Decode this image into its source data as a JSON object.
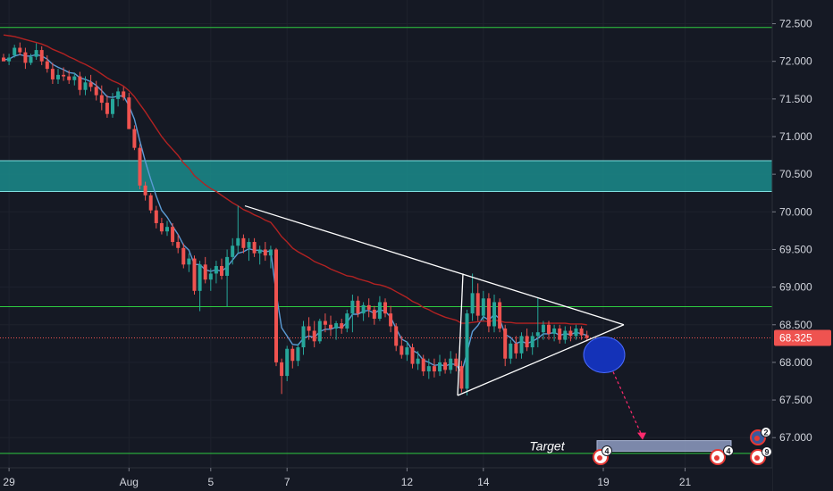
{
  "chart_data": {
    "type": "candlestick",
    "y_ticks": [
      "72.500",
      "72.000",
      "71.500",
      "71.000",
      "70.500",
      "70.000",
      "69.500",
      "69.000",
      "68.500",
      "68.000",
      "67.500",
      "67.000"
    ],
    "x_ticks": [
      "29",
      "Aug",
      "5",
      "7",
      "12",
      "14",
      "19",
      "21"
    ],
    "ylim": [
      66.68,
      72.72
    ],
    "last_price": {
      "label": "68.325",
      "value": 68.325,
      "color": "#ef5350"
    },
    "horizontal_levels": [
      {
        "value": 72.45,
        "color": "#2ecc40"
      },
      {
        "value": 68.74,
        "color": "#2ecc40"
      },
      {
        "value": 66.79,
        "color": "#2ecc40"
      }
    ],
    "resistance_zone": {
      "from": 70.27,
      "to": 70.68,
      "color": "#1a8c8c"
    },
    "triangle": {
      "apex_value": 68.5,
      "upper_start_value": 70.08,
      "lower_start_value": 67.56,
      "color": "#ffffff"
    },
    "target_box": {
      "label": "Target",
      "from": 66.82,
      "to": 66.96,
      "color": "#8e9cc2"
    },
    "projection_circle": {
      "center_value": 68.1,
      "color": "#1432b8"
    },
    "event_markers": [
      {
        "label": "4"
      },
      {
        "label": "4"
      },
      {
        "label": "9"
      },
      {
        "label": "2"
      }
    ],
    "colors": {
      "up": "#26a69a",
      "down": "#ef5350",
      "fast_ma": "#5b9bd5",
      "slow_ma": "#b22222",
      "arrow": "#ff2a6d"
    },
    "series": [
      {
        "name": "",
        "kind": "candles",
        "values": [
          [
            72.05,
            72.1,
            72.02,
            72.0
          ],
          [
            72.0,
            72.1,
            71.95,
            72.05
          ],
          [
            72.08,
            72.22,
            72.05,
            72.18
          ],
          [
            72.18,
            72.25,
            72.08,
            72.12
          ],
          [
            72.12,
            72.18,
            71.9,
            71.98
          ],
          [
            71.98,
            72.1,
            71.95,
            72.06
          ],
          [
            72.06,
            72.24,
            72.02,
            72.15
          ],
          [
            72.15,
            72.2,
            71.95,
            72.0
          ],
          [
            72.0,
            72.08,
            71.85,
            71.9
          ],
          [
            71.9,
            71.98,
            71.7,
            71.76
          ],
          [
            71.76,
            71.9,
            71.7,
            71.82
          ],
          [
            71.82,
            71.92,
            71.74,
            71.8
          ],
          [
            71.8,
            71.88,
            71.7,
            71.75
          ],
          [
            71.75,
            71.85,
            71.68,
            71.8
          ],
          [
            71.8,
            71.86,
            71.55,
            71.62
          ],
          [
            71.62,
            71.8,
            71.55,
            71.72
          ],
          [
            71.72,
            71.82,
            71.6,
            71.66
          ],
          [
            71.66,
            71.74,
            71.48,
            71.55
          ],
          [
            71.55,
            71.68,
            71.35,
            71.45
          ],
          [
            71.45,
            71.55,
            71.25,
            71.3
          ],
          [
            71.3,
            71.58,
            71.25,
            71.5
          ],
          [
            71.5,
            71.65,
            71.4,
            71.6
          ],
          [
            71.6,
            71.66,
            71.48,
            71.52
          ],
          [
            71.52,
            71.58,
            71.1,
            71.1
          ],
          [
            71.1,
            71.15,
            70.82,
            70.85
          ],
          [
            70.85,
            70.9,
            70.3,
            70.35
          ],
          [
            70.35,
            70.4,
            70.15,
            70.22
          ],
          [
            70.22,
            70.25,
            69.98,
            70.02
          ],
          [
            70.02,
            70.08,
            69.78,
            69.85
          ],
          [
            69.85,
            69.92,
            69.7,
            69.74
          ],
          [
            69.74,
            69.88,
            69.68,
            69.8
          ],
          [
            69.8,
            69.85,
            69.55,
            69.6
          ],
          [
            69.6,
            69.7,
            69.45,
            69.52
          ],
          [
            69.52,
            69.58,
            69.25,
            69.3
          ],
          [
            69.3,
            69.45,
            69.2,
            69.38
          ],
          [
            69.38,
            69.42,
            68.9,
            68.95
          ],
          [
            68.95,
            69.35,
            68.68,
            69.3
          ],
          [
            69.3,
            69.4,
            69.05,
            69.1
          ],
          [
            69.1,
            69.25,
            68.95,
            69.18
          ],
          [
            69.18,
            69.35,
            69.05,
            69.28
          ],
          [
            69.28,
            69.38,
            69.1,
            69.15
          ],
          [
            69.15,
            69.5,
            68.74,
            69.4
          ],
          [
            69.4,
            69.65,
            69.3,
            69.55
          ],
          [
            69.55,
            70.08,
            69.45,
            69.65
          ],
          [
            69.65,
            69.7,
            69.45,
            69.52
          ],
          [
            69.52,
            69.65,
            69.35,
            69.6
          ],
          [
            69.6,
            69.65,
            69.4,
            69.45
          ],
          [
            69.45,
            69.55,
            69.3,
            69.5
          ],
          [
            69.5,
            69.6,
            69.35,
            69.42
          ],
          [
            69.42,
            69.55,
            69.25,
            69.5
          ],
          [
            69.5,
            69.52,
            67.95,
            68.0
          ],
          [
            68.0,
            68.05,
            67.58,
            67.82
          ],
          [
            67.82,
            68.22,
            67.75,
            68.18
          ],
          [
            68.18,
            68.22,
            67.92,
            68.02
          ],
          [
            68.02,
            68.25,
            67.95,
            68.2
          ],
          [
            68.2,
            68.55,
            68.1,
            68.48
          ],
          [
            68.48,
            68.6,
            68.3,
            68.42
          ],
          [
            68.42,
            68.55,
            68.2,
            68.28
          ],
          [
            68.28,
            68.58,
            68.25,
            68.55
          ],
          [
            68.55,
            68.65,
            68.4,
            68.5
          ],
          [
            68.5,
            68.62,
            68.35,
            68.45
          ],
          [
            68.45,
            68.55,
            68.3,
            68.52
          ],
          [
            68.52,
            68.58,
            68.38,
            68.45
          ],
          [
            68.45,
            68.7,
            68.4,
            68.65
          ],
          [
            68.65,
            68.9,
            68.4,
            68.82
          ],
          [
            68.82,
            68.88,
            68.6,
            68.65
          ],
          [
            68.65,
            68.8,
            68.55,
            68.76
          ],
          [
            68.76,
            68.85,
            68.6,
            68.7
          ],
          [
            68.7,
            68.75,
            68.5,
            68.58
          ],
          [
            68.58,
            68.88,
            68.55,
            68.8
          ],
          [
            68.8,
            68.85,
            68.6,
            68.65
          ],
          [
            68.65,
            68.75,
            68.4,
            68.48
          ],
          [
            68.48,
            68.52,
            68.15,
            68.22
          ],
          [
            68.22,
            68.35,
            68.05,
            68.1
          ],
          [
            68.1,
            68.28,
            68.02,
            68.2
          ],
          [
            68.2,
            68.25,
            67.92,
            67.98
          ],
          [
            67.98,
            68.15,
            67.9,
            68.05
          ],
          [
            68.05,
            68.1,
            67.82,
            67.88
          ],
          [
            67.88,
            68.05,
            67.78,
            67.95
          ],
          [
            67.95,
            68.05,
            67.8,
            67.88
          ],
          [
            67.88,
            68.1,
            67.82,
            68.0
          ],
          [
            68.0,
            68.05,
            67.85,
            67.9
          ],
          [
            67.9,
            68.15,
            67.85,
            68.05
          ],
          [
            68.05,
            68.12,
            67.88,
            67.95
          ],
          [
            67.95,
            68.02,
            67.6,
            67.65
          ],
          [
            67.65,
            68.7,
            67.56,
            68.65
          ],
          [
            68.65,
            69.18,
            68.55,
            68.92
          ],
          [
            68.92,
            69.05,
            68.55,
            68.62
          ],
          [
            68.62,
            68.95,
            68.55,
            68.85
          ],
          [
            68.85,
            68.92,
            68.4,
            68.48
          ],
          [
            68.48,
            68.9,
            68.4,
            68.8
          ],
          [
            68.8,
            68.85,
            68.4,
            68.45
          ],
          [
            68.45,
            68.5,
            67.95,
            68.05
          ],
          [
            68.05,
            68.3,
            67.98,
            68.25
          ],
          [
            68.25,
            68.35,
            68.05,
            68.12
          ],
          [
            68.12,
            68.4,
            68.05,
            68.35
          ],
          [
            68.35,
            68.45,
            68.15,
            68.2
          ],
          [
            68.2,
            68.4,
            68.1,
            68.35
          ],
          [
            68.35,
            68.85,
            68.2,
            68.4
          ],
          [
            68.4,
            68.55,
            68.3,
            68.5
          ],
          [
            68.5,
            68.55,
            68.3,
            68.38
          ],
          [
            68.38,
            68.5,
            68.28,
            68.45
          ],
          [
            68.45,
            68.5,
            68.25,
            68.3
          ],
          [
            68.3,
            68.48,
            68.25,
            68.42
          ],
          [
            68.42,
            68.48,
            68.28,
            68.35
          ],
          [
            68.35,
            68.5,
            68.3,
            68.45
          ],
          [
            68.45,
            68.48,
            68.3,
            68.36
          ],
          [
            68.36,
            68.42,
            68.28,
            68.325
          ]
        ]
      },
      {
        "name": "",
        "kind": "line",
        "color": "#5b9bd5",
        "values": [
          72.02,
          72.03,
          72.07,
          72.09,
          72.07,
          72.07,
          72.09,
          72.07,
          72.03,
          71.96,
          71.92,
          71.89,
          71.85,
          71.84,
          71.78,
          71.76,
          71.73,
          71.68,
          71.61,
          71.53,
          71.52,
          71.54,
          71.54,
          71.41,
          71.23,
          70.94,
          70.67,
          70.43,
          70.21,
          70.02,
          69.93,
          69.81,
          69.7,
          69.56,
          69.49,
          69.3,
          69.3,
          69.23,
          69.21,
          69.23,
          69.21,
          69.27,
          69.36,
          69.45,
          69.47,
          69.51,
          69.49,
          69.49,
          69.47,
          69.48,
          68.92,
          68.46,
          68.35,
          68.24,
          68.23,
          68.32,
          68.35,
          68.33,
          68.41,
          68.44,
          68.44,
          68.47,
          68.46,
          68.53,
          68.64,
          68.64,
          68.68,
          68.69,
          68.65,
          68.7,
          68.68,
          68.6,
          68.45,
          68.31,
          68.27,
          68.16,
          68.12,
          68.03,
          68.0,
          67.96,
          67.97,
          67.95,
          67.98,
          67.97,
          67.86,
          68.13,
          68.41,
          68.49,
          68.61,
          68.56,
          68.64,
          68.58,
          68.37,
          68.33,
          68.25,
          68.28,
          68.25,
          68.28,
          68.32,
          68.38,
          68.38,
          68.4,
          68.36,
          68.38,
          68.37,
          68.4,
          68.38,
          68.36
        ]
      },
      {
        "name": "",
        "kind": "line",
        "color": "#b22222",
        "values": [
          72.35,
          72.34,
          72.33,
          72.31,
          72.29,
          72.27,
          72.25,
          72.23,
          72.2,
          72.16,
          72.13,
          72.1,
          72.06,
          72.03,
          71.99,
          71.96,
          71.92,
          71.88,
          71.83,
          71.78,
          71.74,
          71.71,
          71.67,
          71.61,
          71.53,
          71.43,
          71.33,
          71.22,
          71.11,
          71.0,
          70.91,
          70.83,
          70.75,
          70.65,
          70.58,
          70.48,
          70.42,
          70.36,
          70.31,
          70.27,
          70.22,
          70.17,
          70.12,
          70.08,
          70.03,
          70.0,
          69.96,
          69.93,
          69.89,
          69.86,
          69.77,
          69.67,
          69.6,
          69.52,
          69.47,
          69.43,
          69.39,
          69.34,
          69.31,
          69.28,
          69.24,
          69.21,
          69.18,
          69.15,
          69.14,
          69.11,
          69.09,
          69.07,
          69.04,
          69.03,
          69.01,
          68.98,
          68.94,
          68.9,
          68.86,
          68.81,
          68.78,
          68.73,
          68.7,
          68.66,
          68.63,
          68.6,
          68.58,
          68.56,
          68.52,
          68.52,
          68.53,
          68.54,
          68.55,
          68.54,
          68.56,
          68.55,
          68.53,
          68.53,
          68.52,
          68.52,
          68.52,
          68.52,
          68.52,
          68.52,
          68.52,
          68.52,
          68.52,
          68.52,
          68.51,
          68.51,
          68.51,
          68.5
        ]
      }
    ]
  }
}
